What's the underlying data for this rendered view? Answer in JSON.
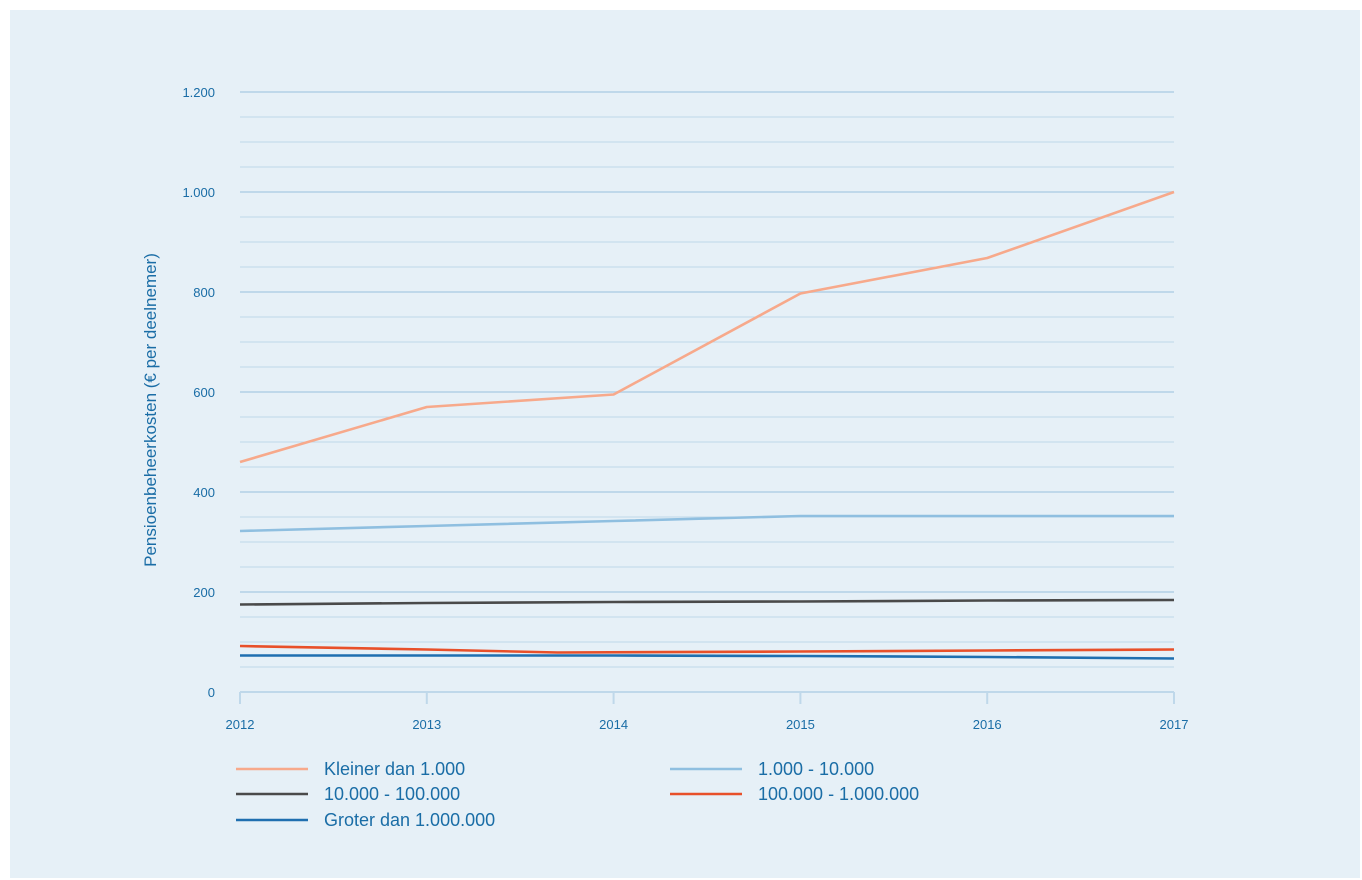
{
  "chart_data": {
    "type": "line",
    "title": "",
    "xlabel": "",
    "ylabel": "Pensioenbeheerkosten (€ per deelnemer)",
    "x": [
      "2012",
      "2013",
      "2014",
      "2015",
      "2016",
      "2017"
    ],
    "ylim": [
      0,
      1200
    ],
    "yticks": [
      0,
      200,
      400,
      600,
      800,
      1000,
      1200
    ],
    "ytick_labels": [
      "0",
      "200",
      "400",
      "600",
      "800",
      "1.000",
      "1.200"
    ],
    "grid": true,
    "legend_position": "bottom",
    "series": [
      {
        "name": "Kleiner dan 1.000",
        "color": "#f7a98b",
        "x": [
          "2012",
          "2013",
          "2014",
          "2015",
          "2016",
          "2017"
        ],
        "values": [
          460,
          570,
          595,
          797,
          868,
          1000
        ]
      },
      {
        "name": "1.000 - 10.000",
        "color": "#8fbfe0",
        "x": [
          "2012",
          "2013",
          "2014",
          "2015",
          "2016",
          "2017"
        ],
        "values": [
          322,
          332,
          342,
          352,
          352,
          352
        ]
      },
      {
        "name": "10.000 - 100.000",
        "color": "#4a4a4a",
        "x": [
          "2012",
          "2013",
          "2014",
          "2015",
          "2016",
          "2017"
        ],
        "values": [
          175,
          178,
          180,
          181,
          183,
          184
        ]
      },
      {
        "name": "100.000 - 1.000.000",
        "color": "#e8502a",
        "x": [
          "2012",
          "2013",
          "2013.7",
          "2015",
          "2016",
          "2017"
        ],
        "values": [
          92,
          85,
          79,
          81,
          83,
          85
        ]
      },
      {
        "name": "Groter dan 1.000.000",
        "color": "#1f6fb0",
        "x": [
          "2012",
          "2013",
          "2014",
          "2015",
          "2016",
          "2017"
        ],
        "values": [
          73,
          73,
          73,
          72,
          70,
          67
        ]
      }
    ]
  }
}
